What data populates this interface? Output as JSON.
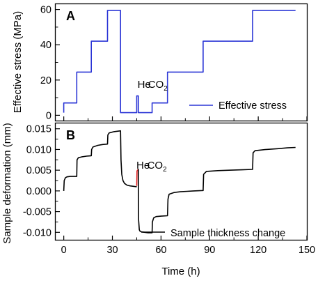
{
  "chart_data": [
    {
      "type": "line",
      "panel": "A",
      "ylabel": "Effective stress (MPa)",
      "xlim": [
        -5,
        150
      ],
      "ylim": [
        -3,
        63
      ],
      "yticks": [
        0,
        20,
        40,
        60
      ],
      "yticks_minor": [
        10,
        30,
        50
      ],
      "grid": false,
      "legend": {
        "position": "bottom-right",
        "entries": [
          {
            "label": "Effective stress",
            "color": "#2b36d6"
          }
        ]
      },
      "annotations": [
        {
          "text": "He",
          "x": 45.5,
          "y": 15.5
        },
        {
          "text": "CO",
          "sub": "2",
          "x": 52,
          "y": 15.5
        }
      ],
      "series": [
        {
          "name": "Effective stress",
          "color": "#2b36d6",
          "x": [
            0,
            0,
            8,
            8,
            17,
            17,
            27,
            27,
            35,
            35,
            45,
            45,
            46,
            46,
            54.5,
            54.5,
            64,
            64,
            86,
            86,
            116.5,
            116.5,
            143
          ],
          "y": [
            1.5,
            7,
            7,
            24.5,
            24.5,
            42,
            42,
            59.5,
            59.5,
            1.5,
            1.5,
            11,
            11,
            1.5,
            1.5,
            7,
            7,
            24.5,
            24.5,
            42,
            42,
            59.5,
            59.5
          ]
        }
      ]
    },
    {
      "type": "line",
      "panel": "B",
      "ylabel": "Sample deformation (mm)",
      "xlabel": "Time (h)",
      "xlim": [
        -5,
        150
      ],
      "xticks": [
        0,
        30,
        60,
        90,
        120,
        150
      ],
      "ylim": [
        -0.0118,
        0.0163
      ],
      "yticks": [
        -0.01,
        -0.005,
        0.0,
        0.005,
        0.01,
        0.015
      ],
      "ytick_labels": [
        "-0.010",
        "-0.005",
        "0.000",
        "0.005",
        "0.010",
        "0.015"
      ],
      "yticks_minor": [
        -0.0075,
        -0.0025,
        0.0025,
        0.0075,
        0.0125
      ],
      "grid": false,
      "legend": {
        "position": "bottom-right",
        "entries": [
          {
            "label": "Sample thickness change",
            "color": "#000000"
          }
        ]
      },
      "annotations": [
        {
          "text": "He",
          "x": 44.8,
          "y": 0.0054
        },
        {
          "text": "CO",
          "sub": "2",
          "x": 51.5,
          "y": 0.0054
        }
      ],
      "series": [
        {
          "name": "Sample thickness change",
          "color": "#000000",
          "x": [
            0,
            0.3,
            1,
            2,
            4,
            6,
            8,
            8.2,
            9,
            11,
            14,
            17,
            17.2,
            18,
            21,
            24,
            27,
            27.2,
            28,
            31,
            35,
            35.3,
            35.8,
            36.5,
            37.5,
            39,
            41,
            43,
            45
          ],
          "y": [
            0.0,
            0.0025,
            0.0032,
            0.0034,
            0.0035,
            0.0035,
            0.0035,
            0.0075,
            0.008,
            0.0082,
            0.0084,
            0.0085,
            0.01,
            0.0106,
            0.011,
            0.0112,
            0.0113,
            0.0135,
            0.014,
            0.0143,
            0.0145,
            0.0075,
            0.004,
            0.0025,
            0.0018,
            0.0014,
            0.0012,
            0.0011,
            0.001
          ]
        },
        {
          "name": "He",
          "color": "#e02020",
          "x": [
            45,
            45.2,
            46
          ],
          "y": [
            0.0012,
            0.0048,
            0.0053
          ]
        },
        {
          "name": "CO2",
          "color": "#000000",
          "x": [
            46,
            46.2,
            46.6,
            47,
            48,
            50,
            52,
            54.5,
            54.7,
            55.5,
            57,
            60,
            64,
            64.3,
            65,
            68,
            72,
            76,
            80,
            86,
            86.3,
            88,
            95,
            102,
            110,
            116.5,
            116.8,
            118,
            125,
            132,
            138,
            143
          ],
          "y": [
            0.0053,
            -0.007,
            -0.0094,
            -0.0097,
            -0.0099,
            -0.01,
            -0.0101,
            -0.0101,
            -0.0075,
            -0.0065,
            -0.0062,
            -0.0061,
            -0.006,
            -0.002,
            -0.0008,
            -0.0004,
            -0.0002,
            -0.0001,
            0.0,
            0.0001,
            0.004,
            0.0047,
            0.0049,
            0.005,
            0.0051,
            0.0052,
            0.0092,
            0.0097,
            0.01,
            0.0102,
            0.0104,
            0.0105
          ]
        }
      ]
    }
  ]
}
